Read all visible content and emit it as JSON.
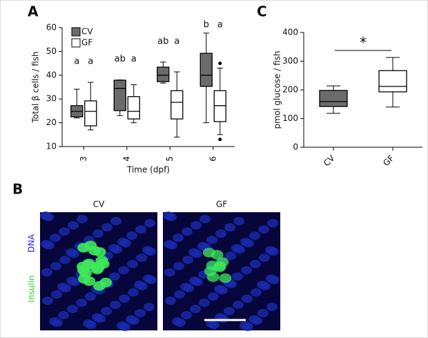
{
  "chart_data": [
    {
      "type": "box",
      "panel": "A",
      "ylabel": "Total β cells / fish",
      "xlabel": "Time (dpf)",
      "categories": [
        "3",
        "4",
        "5",
        "6"
      ],
      "ylim": [
        10,
        60
      ],
      "yticks": [
        10,
        20,
        30,
        40,
        50,
        60
      ],
      "series": [
        {
          "name": "CV",
          "color": "#6b6b6b",
          "min": [
            22,
            23,
            36.7,
            20
          ],
          "q1": [
            22.5,
            25.1,
            37.3,
            35.3
          ],
          "median": [
            24.8,
            34.4,
            40,
            40
          ],
          "q3": [
            27.2,
            37.9,
            43.4,
            49.2
          ],
          "max": [
            34.1,
            38,
            45.5,
            57.7
          ],
          "outliers": [
            [],
            [],
            [],
            []
          ],
          "letters": [
            "a",
            "ab",
            "ab",
            "b"
          ]
        },
        {
          "name": "GF",
          "color": "#ffffff",
          "min": [
            17,
            20,
            14,
            15
          ],
          "q1": [
            18.7,
            21.6,
            21.6,
            20.5
          ],
          "median": [
            24.8,
            24.8,
            28.6,
            27.2
          ],
          "q3": [
            29.2,
            31,
            33.5,
            33.5
          ],
          "max": [
            37,
            36,
            41.4,
            43
          ],
          "outliers": [
            [],
            [],
            [],
            [
              45,
              13
            ]
          ],
          "letters": [
            "a",
            "a",
            "a",
            "a"
          ]
        }
      ]
    },
    {
      "type": "box",
      "panel": "C",
      "ylabel": "pmol glucose / fish",
      "annotation": "*",
      "categories": [
        "CV",
        "GF"
      ],
      "colors": [
        "#6b6b6b",
        "#ffffff"
      ],
      "min": [
        118,
        140
      ],
      "q1": [
        142,
        193
      ],
      "median": [
        159,
        212
      ],
      "q3": [
        198,
        267
      ],
      "max": [
        214,
        313
      ],
      "ylim": [
        0,
        400
      ],
      "yticks": [
        0,
        100,
        200,
        300,
        400
      ]
    }
  ],
  "figure_panel": {
    "label": "B",
    "columns": [
      "CV",
      "GF"
    ],
    "stains": [
      "DNA",
      "Insulin"
    ]
  }
}
